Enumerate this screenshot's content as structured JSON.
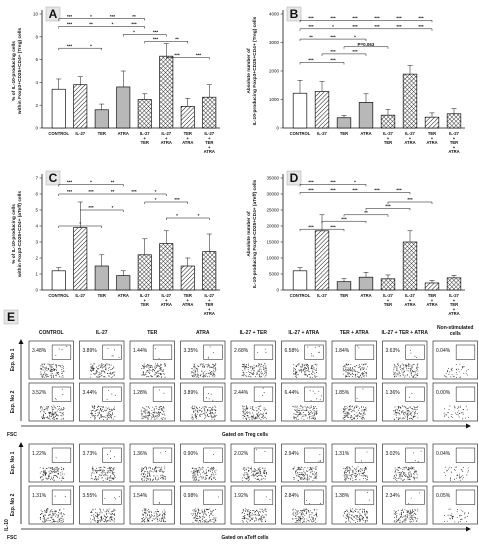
{
  "colors": {
    "white": "#ffffff",
    "gray": "#b8b8b8",
    "black": "#111111",
    "panel_bg": "#e6e6e6"
  },
  "chart_data": [
    {
      "type": "bar",
      "panel_label": "A",
      "ylabel": "% of IL-10-producing cells within Foxp3+CD25+CD4+ (Treg) cells",
      "ylim": [
        0,
        10
      ],
      "yticks": [
        "0",
        "2",
        "4",
        "6",
        "8",
        "10"
      ],
      "categories": [
        "CONTROL",
        "IL-27",
        "TER",
        "ATRA",
        "IL-27 + TER",
        "IL-27 + ATRA",
        "TER + ATRA",
        "IL-27 + TER + ATRA"
      ],
      "values": [
        3.4,
        3.8,
        1.6,
        3.6,
        2.5,
        6.3,
        1.9,
        2.7
      ],
      "errors": [
        0.9,
        0.7,
        0.5,
        1.4,
        0.5,
        1.1,
        0.7,
        1.1
      ],
      "fills": [
        "white",
        "hatch",
        "gray",
        "gray",
        "cross",
        "cross",
        "hatch",
        "cross"
      ],
      "significance": [
        {
          "label": "***",
          "y": 9.6
        },
        {
          "label": "*",
          "y": 9.6
        },
        {
          "label": "***",
          "y": 9.6
        },
        {
          "label": "**",
          "y": 9.6
        },
        {
          "label": "***",
          "y": 8.9
        },
        {
          "label": "**",
          "y": 8.9
        },
        {
          "label": "*",
          "y": 8.9
        },
        {
          "label": "***",
          "y": 8.9
        },
        {
          "label": "*",
          "y": 8.2
        },
        {
          "label": "***",
          "y": 8.2
        },
        {
          "label": "***",
          "y": 7.6
        },
        {
          "label": "**",
          "y": 7.6
        },
        {
          "label": "***",
          "y": 7.0
        },
        {
          "label": "*",
          "y": 7.0
        },
        {
          "label": "***",
          "y": 6.2
        },
        {
          "label": "***",
          "y": 6.2
        }
      ]
    },
    {
      "type": "bar",
      "panel_label": "B",
      "ylabel": "Absolute number of IL-10-producing Foxp3+CD25+CD4+ (Treg) cells",
      "ylim": [
        0,
        4000
      ],
      "yticks": [
        "0",
        "1000",
        "2000",
        "3000",
        "4000"
      ],
      "categories": [
        "CONTROL",
        "IL-27",
        "TER",
        "ATRA",
        "IL-27 + TER",
        "IL-27 + ATRA",
        "TER + ATRA",
        "IL-27 + TER + ATRA"
      ],
      "values": [
        1220,
        1280,
        360,
        900,
        450,
        1890,
        380,
        500
      ],
      "errors": [
        450,
        350,
        80,
        300,
        200,
        300,
        150,
        180
      ],
      "fills": [
        "white",
        "hatch",
        "gray",
        "gray",
        "cross",
        "cross",
        "hatch",
        "cross"
      ],
      "significance": [
        {
          "label": "***",
          "y": 3780
        },
        {
          "label": "***",
          "y": 3780
        },
        {
          "label": "***",
          "y": 3780
        },
        {
          "label": "***",
          "y": 3780
        },
        {
          "label": "***",
          "y": 3780
        },
        {
          "label": "***",
          "y": 3780
        },
        {
          "label": "***",
          "y": 3480
        },
        {
          "label": "*",
          "y": 3480
        },
        {
          "label": "***",
          "y": 3480
        },
        {
          "label": "***",
          "y": 3480
        },
        {
          "label": "***",
          "y": 3480
        },
        {
          "label": "***",
          "y": 3480
        },
        {
          "label": "**",
          "y": 3120
        },
        {
          "label": "***",
          "y": 3120
        },
        {
          "label": "*",
          "y": 3120
        },
        {
          "label": "P=0.063",
          "y": 2850
        },
        {
          "label": "***",
          "y": 2600
        },
        {
          "label": "***",
          "y": 2600
        },
        {
          "label": "***",
          "y": 2300
        },
        {
          "label": "***",
          "y": 2300
        }
      ]
    },
    {
      "type": "bar",
      "panel_label": "C",
      "ylabel": "% of IL-10-producing cells within Foxp3-CD25+CD4+ (aTeff) cells",
      "ylim": [
        0,
        7
      ],
      "yticks": [
        "0",
        "1",
        "2",
        "3",
        "4",
        "5",
        "6",
        "7"
      ],
      "categories": [
        "CONTROL",
        "IL-27",
        "TER",
        "ATRA",
        "IL-27 + TER",
        "IL-27 + ATRA",
        "TER + ATRA",
        "IL-27 + TER + ATRA"
      ],
      "values": [
        1.2,
        3.9,
        1.5,
        0.9,
        2.2,
        2.9,
        1.5,
        2.4
      ],
      "errors": [
        0.2,
        1.6,
        0.7,
        0.3,
        1.0,
        0.8,
        0.5,
        1.1
      ],
      "fills": [
        "white",
        "hatch",
        "gray",
        "gray",
        "cross",
        "cross",
        "hatch",
        "cross"
      ],
      "significance": [
        {
          "label": "***",
          "y": 6.6
        },
        {
          "label": "*",
          "y": 6.6
        },
        {
          "label": "**",
          "y": 6.6
        },
        {
          "label": "***",
          "y": 6.0
        },
        {
          "label": "***",
          "y": 6.0
        },
        {
          "label": "**",
          "y": 6.0
        },
        {
          "label": "***",
          "y": 6.0
        },
        {
          "label": "*",
          "y": 6.0
        },
        {
          "label": "*",
          "y": 5.5
        },
        {
          "label": "***",
          "y": 5.5
        },
        {
          "label": "***",
          "y": 5.0
        },
        {
          "label": "*",
          "y": 5.0
        },
        {
          "label": "*",
          "y": 4.5
        },
        {
          "label": "*",
          "y": 4.5
        },
        {
          "label": "*",
          "y": 4.0
        }
      ]
    },
    {
      "type": "bar",
      "panel_label": "D",
      "ylabel": "Absolute number of IL-10-producing Foxp3-CD25+CD4+ (aTeff) cells",
      "ylim": [
        0,
        35000
      ],
      "yticks": [
        "0",
        "5000",
        "10000",
        "15000",
        "20000",
        "25000",
        "30000",
        "35000"
      ],
      "categories": [
        "CONTROL",
        "IL-27",
        "TER",
        "ATRA",
        "IL-27 + TER",
        "IL-27 + ATRA",
        "TER + ATRA",
        "IL-27 + TER + ATRA"
      ],
      "values": [
        6000,
        18500,
        2600,
        4000,
        3500,
        15000,
        2200,
        3800
      ],
      "errors": [
        1000,
        5000,
        1000,
        1500,
        1200,
        3500,
        800,
        800
      ],
      "fills": [
        "white",
        "hatch",
        "gray",
        "gray",
        "cross",
        "cross",
        "hatch",
        "cross"
      ],
      "significance": [
        {
          "label": "***",
          "y": 33000
        },
        {
          "label": "***",
          "y": 33000
        },
        {
          "label": "*",
          "y": 33000
        },
        {
          "label": "***",
          "y": 30500
        },
        {
          "label": "***",
          "y": 30500
        },
        {
          "label": "***",
          "y": 30500
        },
        {
          "label": "***",
          "y": 30500
        },
        {
          "label": "***",
          "y": 30500
        },
        {
          "label": "***",
          "y": 27500
        },
        {
          "label": "***",
          "y": 25500
        },
        {
          "label": "**",
          "y": 23500
        },
        {
          "label": "***",
          "y": 21500
        },
        {
          "label": "***",
          "y": 19000
        },
        {
          "label": "***",
          "y": 19000
        }
      ]
    }
  ],
  "flow": {
    "panel_label": "E",
    "columns": [
      "CONTROL",
      "IL-27",
      "TER",
      "ATRA",
      "IL-27 + TER",
      "IL-27 + ATRA",
      "TER + ATRA",
      "IL-27 + TER + ATRA",
      "Non-stimulated cells"
    ],
    "blocks": [
      {
        "rows": [
          {
            "label": "Exp. No 1",
            "values": [
              "3.48%",
              "3.89%",
              "1.44%",
              "3.35%",
              "2.68%",
              "6.58%",
              "1.84%",
              "3.63%",
              "0.04%"
            ]
          },
          {
            "label": "Exp. No 2",
            "values": [
              "3.52%",
              "3.44%",
              "1.28%",
              "3.89%",
              "2.44%",
              "6.44%",
              "1.85%",
              "1.36%",
              "0.00%"
            ]
          }
        ],
        "x_label": "FSC",
        "gated_label": "Gated on Treg cells"
      },
      {
        "rows": [
          {
            "label": "Exp. No 1",
            "values": [
              "1.22%",
              "3.73%",
              "1.36%",
              "0.90%",
              "2.02%",
              "2.94%",
              "1.31%",
              "3.02%",
              "0.04%"
            ]
          },
          {
            "label": "Exp. No 2",
            "values": [
              "1.31%",
              "3.55%",
              "1.54%",
              "0.98%",
              "1.92%",
              "2.84%",
              "1.38%",
              "2.34%",
              "0.05%"
            ]
          }
        ],
        "x_label": "FSC",
        "y_label": "IL-10",
        "gated_label": "Gated on aTeff cells"
      }
    ]
  }
}
